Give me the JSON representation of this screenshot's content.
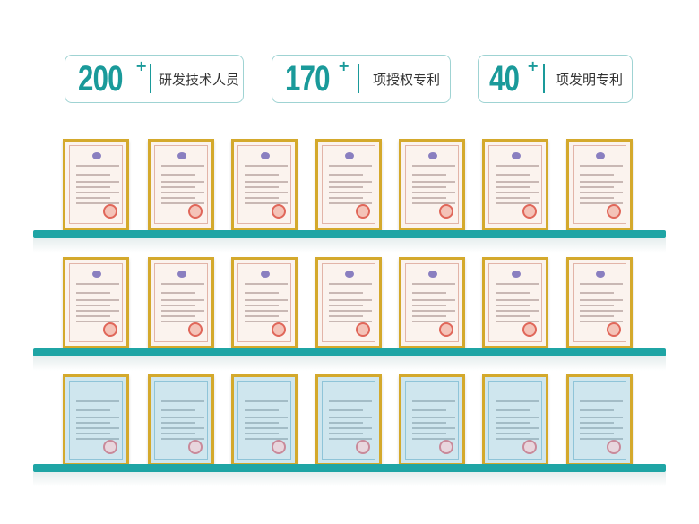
{
  "stats": [
    {
      "number": "200",
      "suffix": "+",
      "label": "研发技术人员"
    },
    {
      "number": "170",
      "suffix": "+",
      "label": "项授权专利"
    },
    {
      "number": "40",
      "suffix": "+",
      "label": "项发明专利"
    }
  ],
  "colors": {
    "accent": "#1a9a9a",
    "shelf": "#1fa5a5",
    "frame": "#d4a92c"
  },
  "shelves": [
    {
      "certificate_style": "invention-patent",
      "count": 7
    },
    {
      "certificate_style": "utility-model-patent",
      "count": 7
    },
    {
      "certificate_style": "software-copyright",
      "count": 7
    }
  ]
}
